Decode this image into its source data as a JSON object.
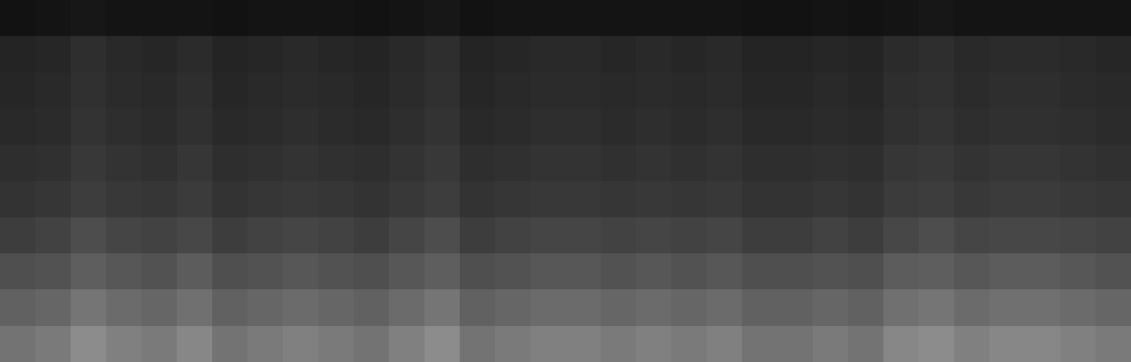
{
  "chart_data": {
    "type": "heatmap",
    "tick_labels": false,
    "grid": false,
    "zlim": [
      0,
      1
    ],
    "z": [
      [
        0.45,
        0.48,
        0.55,
        0.5,
        0.48,
        0.53,
        0.45,
        0.48,
        0.5,
        0.48,
        0.45,
        0.5,
        0.55,
        0.45,
        0.48,
        0.5,
        0.5,
        0.48,
        0.5,
        0.48,
        0.5,
        0.45,
        0.45,
        0.48,
        0.45,
        0.53,
        0.55,
        0.5,
        0.53,
        0.53,
        0.5,
        0.48
      ],
      [
        0.38,
        0.4,
        0.46,
        0.42,
        0.4,
        0.44,
        0.38,
        0.4,
        0.42,
        0.4,
        0.38,
        0.42,
        0.46,
        0.38,
        0.4,
        0.42,
        0.42,
        0.4,
        0.42,
        0.4,
        0.42,
        0.38,
        0.38,
        0.4,
        0.38,
        0.44,
        0.46,
        0.42,
        0.44,
        0.44,
        0.42,
        0.4
      ],
      [
        0.31,
        0.32,
        0.37,
        0.34,
        0.32,
        0.36,
        0.31,
        0.32,
        0.34,
        0.32,
        0.31,
        0.34,
        0.37,
        0.31,
        0.32,
        0.34,
        0.34,
        0.32,
        0.34,
        0.32,
        0.34,
        0.31,
        0.31,
        0.32,
        0.31,
        0.36,
        0.37,
        0.34,
        0.36,
        0.36,
        0.34,
        0.32
      ],
      [
        0.24,
        0.26,
        0.3,
        0.27,
        0.26,
        0.28,
        0.24,
        0.26,
        0.27,
        0.26,
        0.24,
        0.27,
        0.3,
        0.24,
        0.26,
        0.27,
        0.27,
        0.26,
        0.27,
        0.26,
        0.27,
        0.24,
        0.24,
        0.26,
        0.24,
        0.28,
        0.3,
        0.27,
        0.28,
        0.28,
        0.27,
        0.26
      ],
      [
        0.2,
        0.21,
        0.24,
        0.22,
        0.21,
        0.23,
        0.2,
        0.21,
        0.22,
        0.21,
        0.2,
        0.22,
        0.24,
        0.2,
        0.21,
        0.22,
        0.22,
        0.21,
        0.22,
        0.21,
        0.22,
        0.2,
        0.2,
        0.21,
        0.2,
        0.23,
        0.24,
        0.22,
        0.23,
        0.23,
        0.22,
        0.21
      ],
      [
        0.18,
        0.19,
        0.22,
        0.2,
        0.19,
        0.21,
        0.18,
        0.19,
        0.2,
        0.19,
        0.18,
        0.2,
        0.22,
        0.18,
        0.19,
        0.2,
        0.2,
        0.19,
        0.2,
        0.19,
        0.2,
        0.18,
        0.18,
        0.19,
        0.18,
        0.21,
        0.22,
        0.2,
        0.21,
        0.21,
        0.2,
        0.19
      ],
      [
        0.16,
        0.17,
        0.2,
        0.18,
        0.17,
        0.19,
        0.16,
        0.17,
        0.18,
        0.17,
        0.16,
        0.18,
        0.2,
        0.16,
        0.17,
        0.18,
        0.18,
        0.17,
        0.18,
        0.17,
        0.18,
        0.16,
        0.16,
        0.17,
        0.16,
        0.19,
        0.2,
        0.18,
        0.19,
        0.19,
        0.18,
        0.17
      ],
      [
        0.15,
        0.16,
        0.19,
        0.17,
        0.16,
        0.18,
        0.15,
        0.16,
        0.17,
        0.16,
        0.15,
        0.17,
        0.19,
        0.15,
        0.16,
        0.17,
        0.17,
        0.16,
        0.17,
        0.16,
        0.17,
        0.15,
        0.15,
        0.16,
        0.15,
        0.18,
        0.19,
        0.17,
        0.18,
        0.18,
        0.17,
        0.16
      ],
      [
        0.14,
        0.15,
        0.18,
        0.16,
        0.15,
        0.17,
        0.14,
        0.15,
        0.16,
        0.15,
        0.14,
        0.16,
        0.18,
        0.14,
        0.15,
        0.16,
        0.16,
        0.15,
        0.16,
        0.15,
        0.16,
        0.14,
        0.14,
        0.15,
        0.14,
        0.17,
        0.18,
        0.16,
        0.17,
        0.17,
        0.16,
        0.15
      ],
      [
        0.07,
        0.08,
        0.09,
        0.08,
        0.08,
        0.08,
        0.07,
        0.08,
        0.08,
        0.08,
        0.07,
        0.08,
        0.09,
        0.07,
        0.08,
        0.08,
        0.08,
        0.08,
        0.08,
        0.08,
        0.08,
        0.07,
        0.07,
        0.08,
        0.07,
        0.08,
        0.09,
        0.08,
        0.08,
        0.08,
        0.08,
        0.08
      ]
    ]
  }
}
